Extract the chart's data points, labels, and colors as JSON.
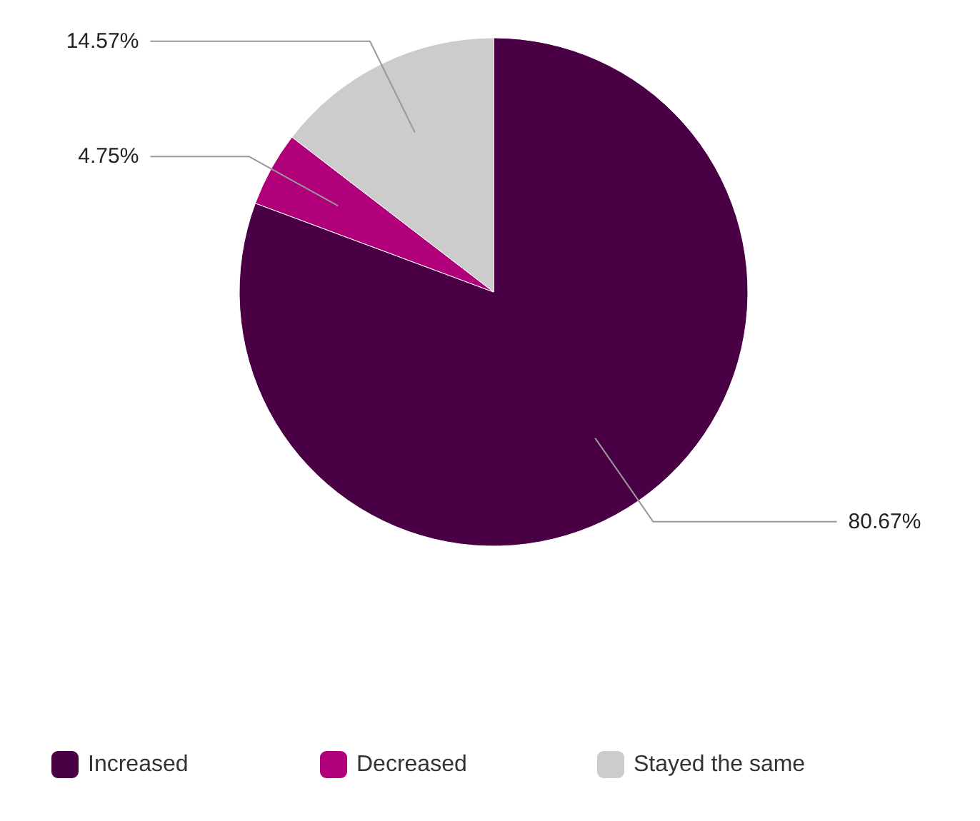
{
  "chart_data": {
    "type": "pie",
    "categories": [
      "Increased",
      "Decreased",
      "Stayed the same"
    ],
    "values": [
      80.67,
      4.75,
      14.57
    ],
    "colors": [
      "#4a0045",
      "#b0007a",
      "#cccccc"
    ],
    "value_labels": [
      "80.67%",
      "4.75%",
      "14.57%"
    ],
    "legend": "bottom"
  }
}
